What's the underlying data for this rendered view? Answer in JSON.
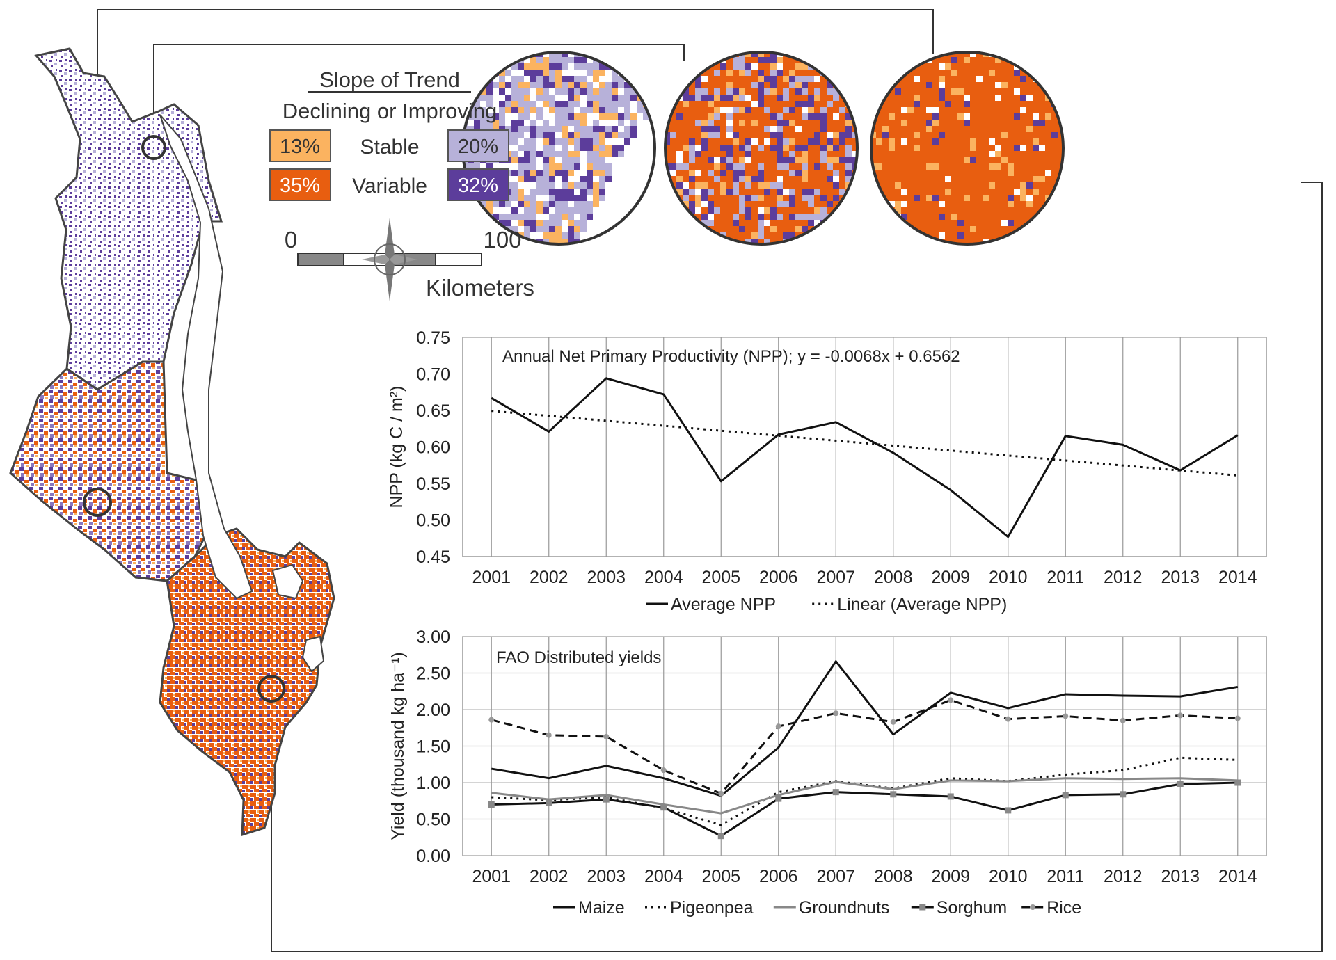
{
  "legend": {
    "title": "Slope of Trend",
    "subtitle": "Declining or Improving",
    "stable_label": "Stable",
    "variable_label": "Variable",
    "boxes": [
      {
        "key": "stable-declining",
        "pct": "13%",
        "color": "#fbb360"
      },
      {
        "key": "stable-improving",
        "pct": "20%",
        "color": "#b7b1d9"
      },
      {
        "key": "variable-declining",
        "pct": "35%",
        "color": "#e85e10"
      },
      {
        "key": "variable-improving",
        "pct": "32%",
        "color": "#5c3d9b"
      }
    ]
  },
  "scalebar": {
    "min_label": "0",
    "max_label": "100",
    "unit": "Kilometers"
  },
  "colors": {
    "stable_declining": "#fbb360",
    "stable_improving": "#b7b1d9",
    "variable_declining": "#e85e10",
    "variable_improving": "#5c3d9b"
  },
  "chart_data": [
    {
      "type": "line",
      "title": "Annual Net Primary Productivity (NPP); y = -0.0068x + 0.6562",
      "ylabel": "NPP (kg C / m²)",
      "xlabel": "",
      "x": [
        2001,
        2002,
        2003,
        2004,
        2005,
        2006,
        2007,
        2008,
        2009,
        2010,
        2011,
        2012,
        2013,
        2014
      ],
      "ylim": [
        0.45,
        0.75
      ],
      "yticks": [
        "0.45",
        "0.50",
        "0.55",
        "0.60",
        "0.65",
        "0.70",
        "0.75"
      ],
      "grid": "vertical",
      "legend_position": "bottom",
      "series": [
        {
          "name": "Average NPP",
          "style": "solid",
          "values": [
            0.667,
            0.621,
            0.694,
            0.672,
            0.553,
            0.617,
            0.634,
            0.592,
            0.541,
            0.477,
            0.615,
            0.603,
            0.568,
            0.616
          ]
        },
        {
          "name": "Linear (Average NPP)",
          "style": "dotted",
          "values": [
            0.6494,
            0.6426,
            0.6358,
            0.629,
            0.6222,
            0.6154,
            0.6086,
            0.6018,
            0.595,
            0.5882,
            0.5814,
            0.5746,
            0.5678,
            0.561
          ]
        }
      ]
    },
    {
      "type": "line",
      "title": "FAO Distributed yields",
      "ylabel": "Yield (thousand kg ha⁻¹)",
      "xlabel": "",
      "x": [
        2001,
        2002,
        2003,
        2004,
        2005,
        2006,
        2007,
        2008,
        2009,
        2010,
        2011,
        2012,
        2013,
        2014
      ],
      "ylim": [
        0,
        3
      ],
      "yticks": [
        "0.00",
        "0.50",
        "1.00",
        "1.50",
        "2.00",
        "2.50",
        "3.00"
      ],
      "grid": "both",
      "legend_position": "bottom",
      "series": [
        {
          "name": "Maize",
          "style": "solid",
          "values": [
            1.19,
            1.06,
            1.23,
            1.06,
            0.82,
            1.48,
            2.66,
            1.66,
            2.23,
            2.02,
            2.21,
            2.19,
            2.18,
            2.31
          ]
        },
        {
          "name": "Pigeonpea",
          "style": "dotted",
          "values": [
            0.8,
            0.76,
            0.8,
            0.65,
            0.42,
            0.87,
            1.02,
            0.92,
            1.06,
            1.02,
            1.11,
            1.17,
            1.34,
            1.31
          ]
        },
        {
          "name": "Groundnuts",
          "style": "gray",
          "values": [
            0.86,
            0.77,
            0.83,
            0.7,
            0.58,
            0.83,
            1.01,
            0.91,
            1.03,
            1.02,
            1.06,
            1.05,
            1.06,
            1.03
          ]
        },
        {
          "name": "Sorghum",
          "style": "solid-marker",
          "values": [
            0.7,
            0.72,
            0.77,
            0.66,
            0.27,
            0.78,
            0.87,
            0.84,
            0.81,
            0.62,
            0.83,
            0.84,
            0.98,
            1.0
          ]
        },
        {
          "name": "Rice",
          "style": "dashed",
          "values": [
            1.86,
            1.65,
            1.63,
            1.17,
            0.85,
            1.77,
            1.95,
            1.83,
            2.13,
            1.87,
            1.91,
            1.85,
            1.92,
            1.88
          ]
        }
      ]
    }
  ]
}
